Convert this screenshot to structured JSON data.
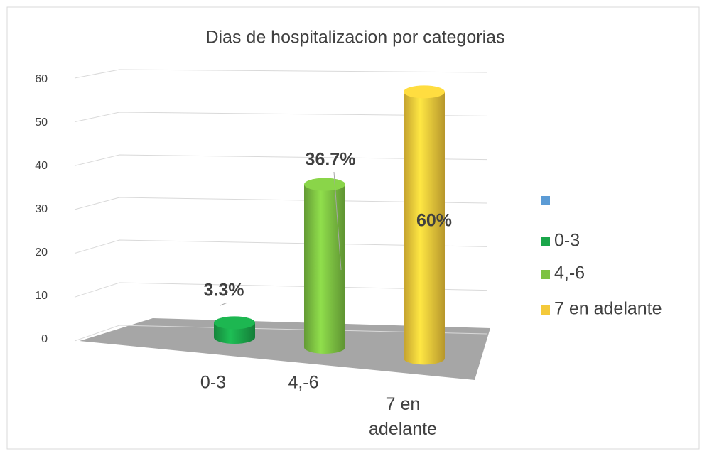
{
  "chart_data": {
    "type": "bar3d",
    "title": "Dias de hospitalizacion por categorias",
    "categories": [
      "0-3",
      "4,-6",
      "7 en adelante"
    ],
    "values": [
      3.3,
      36.7,
      60
    ],
    "value_labels": [
      "3.3%",
      "36.7%",
      "60%"
    ],
    "colors": [
      "#1aa64a",
      "#7dc242",
      "#f4c93a"
    ],
    "ylim": [
      0,
      60
    ],
    "yticks": [
      0,
      10,
      20,
      30,
      40,
      50,
      60
    ],
    "grid": true,
    "legend": "right"
  }
}
